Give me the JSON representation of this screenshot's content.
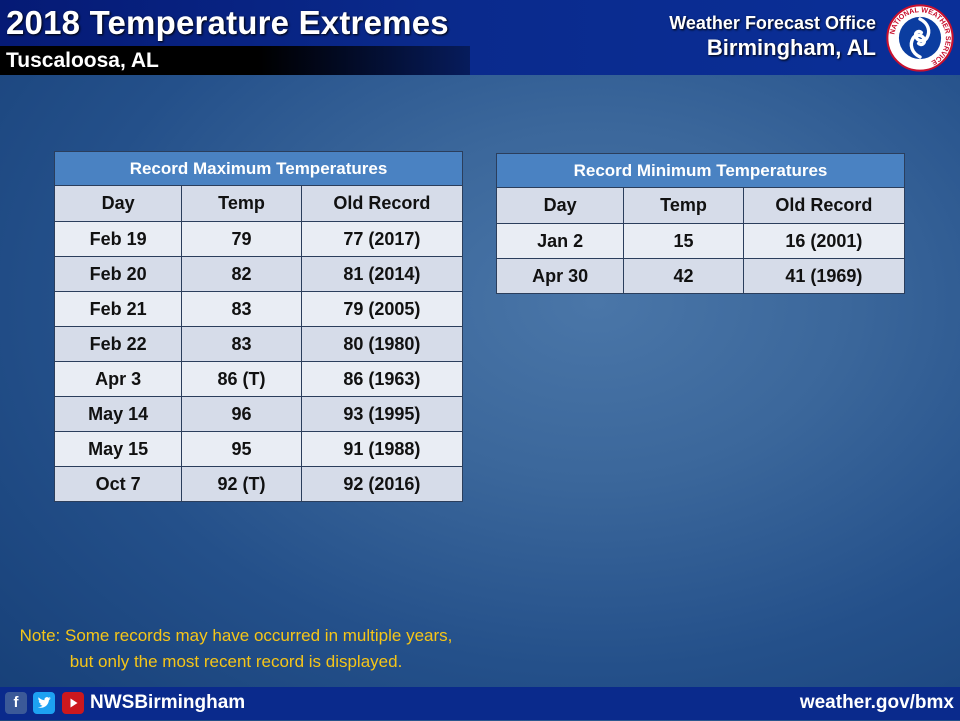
{
  "header": {
    "title": "2018 Temperature Extremes",
    "subtitle": "Tuscaloosa, AL",
    "office_line1": "Weather Forecast Office",
    "office_line2": "Birmingham, AL",
    "logo_text": "NATIONAL WEATHER SERVICE"
  },
  "max_table": {
    "caption": "Record Maximum Temperatures",
    "columns": [
      "Day",
      "Temp",
      "Old Record"
    ],
    "rows": [
      [
        "Feb 19",
        "79",
        "77 (2017)"
      ],
      [
        "Feb 20",
        "82",
        "81 (2014)"
      ],
      [
        "Feb 21",
        "83",
        "79 (2005)"
      ],
      [
        "Feb 22",
        "83",
        "80 (1980)"
      ],
      [
        "Apr 3",
        "86 (T)",
        "86 (1963)"
      ],
      [
        "May 14",
        "96",
        "93 (1995)"
      ],
      [
        "May 15",
        "95",
        "91 (1988)"
      ],
      [
        "Oct 7",
        "92 (T)",
        "92 (2016)"
      ]
    ]
  },
  "min_table": {
    "caption": "Record Minimum Temperatures",
    "columns": [
      "Day",
      "Temp",
      "Old Record"
    ],
    "rows": [
      [
        "Jan 2",
        "15",
        "16 (2001)"
      ],
      [
        "Apr 30",
        "42",
        "41 (1969)"
      ]
    ]
  },
  "note": "Note: Some records may have occurred in multiple years, but only the most recent record is displayed.",
  "footer": {
    "social_icons": [
      "facebook-icon",
      "twitter-icon",
      "youtube-icon"
    ],
    "handle": "NWSBirmingham",
    "website": "weather.gov/bmx"
  },
  "colors": {
    "header_bg": "#0a2a8c",
    "table_caption_bg": "#4a82c2",
    "note_text": "#f5c518"
  }
}
